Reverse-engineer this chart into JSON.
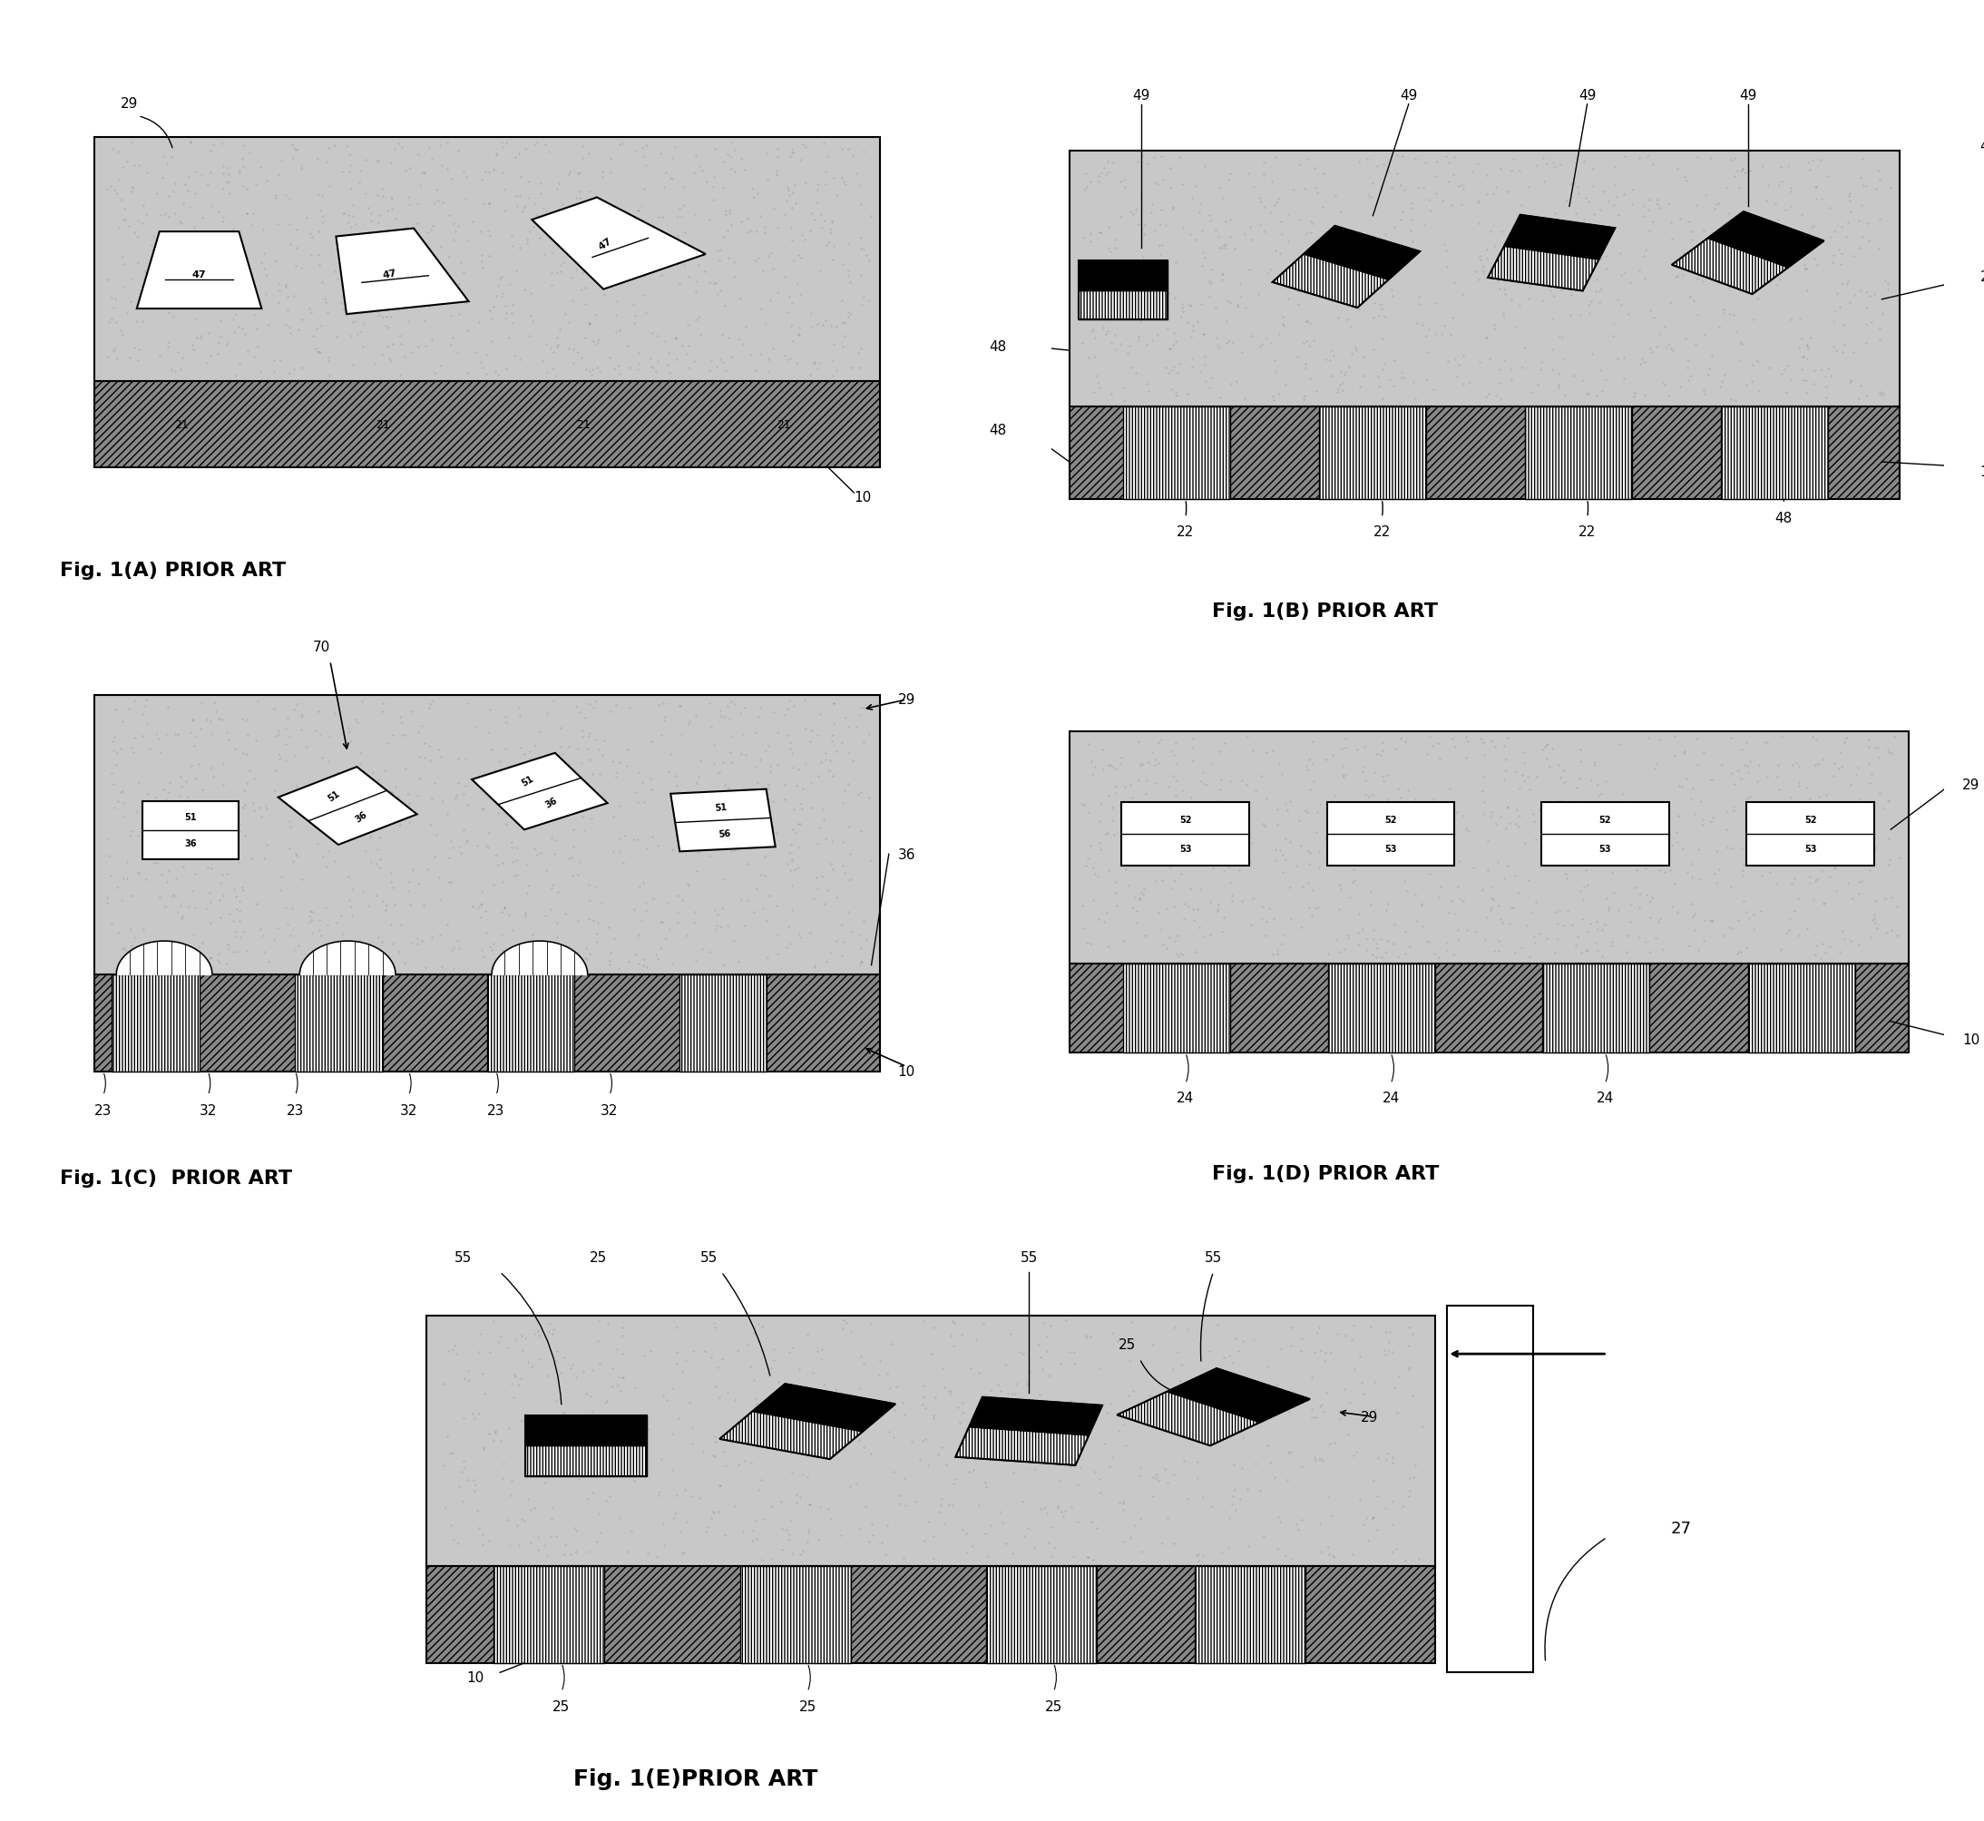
{
  "fig_width": 21.87,
  "fig_height": 20.08,
  "bg_color": "#ffffff",
  "stipple_color": "#b8b8b8",
  "substrate_hatch": "////",
  "fig_labels": [
    "Fig. 1(A) PRIOR ART",
    "Fig. 1(B) PRIOR ART",
    "Fig. 1(C)  PRIOR ART",
    "Fig. 1(D) PRIOR ART",
    "Fig. 1(E)PRIOR ART"
  ],
  "label_fontsize": 16,
  "ref_fontsize": 11,
  "panels": {
    "A": [
      0.03,
      0.715,
      0.44,
      0.235
    ],
    "B": [
      0.53,
      0.695,
      0.45,
      0.255
    ],
    "C": [
      0.03,
      0.385,
      0.44,
      0.265
    ],
    "D": [
      0.53,
      0.385,
      0.45,
      0.245
    ],
    "E": [
      0.19,
      0.055,
      0.62,
      0.265
    ]
  }
}
